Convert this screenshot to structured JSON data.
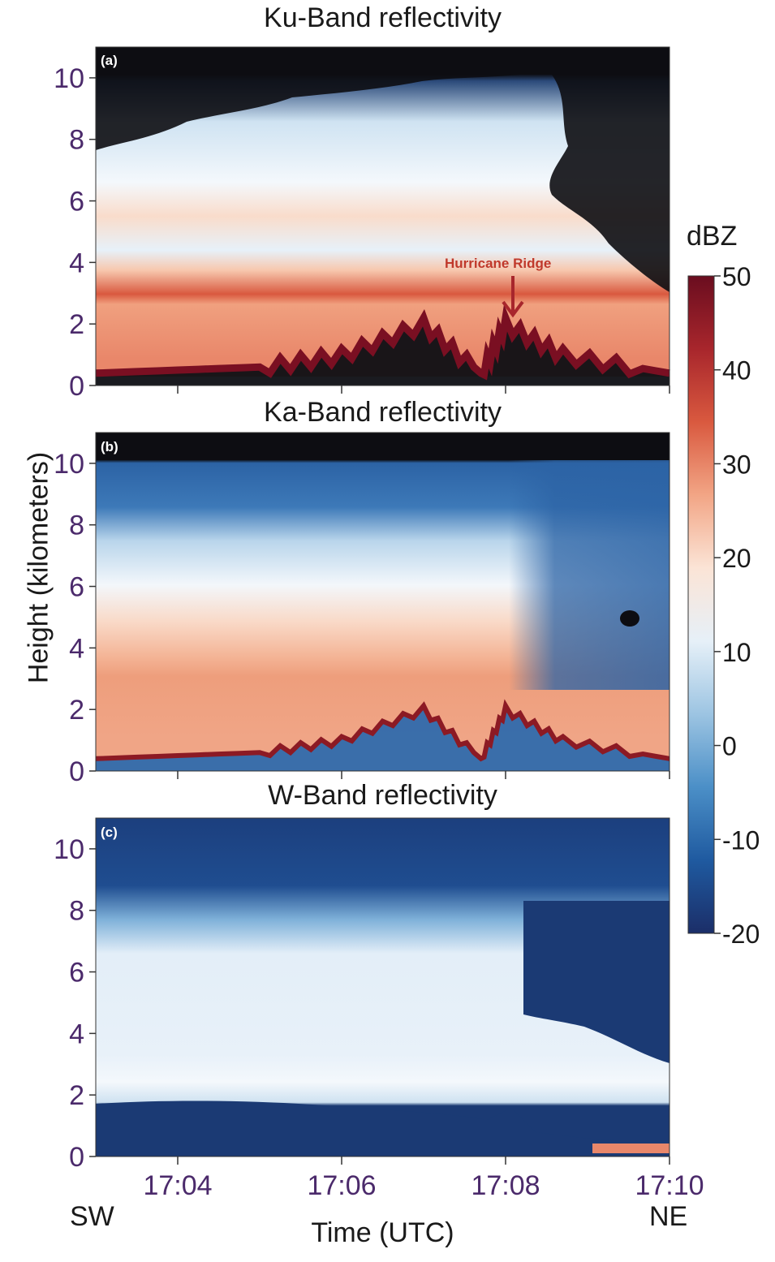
{
  "chart_data": [
    {
      "type": "heatmap",
      "panel": "(a)",
      "title": "Ku-Band reflectivity",
      "annotation": "Hurricane Ridge",
      "xlim": [
        "17:03",
        "17:10"
      ],
      "ylim": [
        0,
        11
      ],
      "yticks": [
        0,
        2,
        4,
        6,
        8,
        10
      ],
      "xticks": [
        "17:04",
        "17:06",
        "17:08",
        "17:10"
      ],
      "profile": [
        {
          "height_km": 10.2,
          "dBZ": -30
        },
        {
          "height_km": 9.0,
          "dBZ": 3
        },
        {
          "height_km": 7.0,
          "dBZ": 12
        },
        {
          "height_km": 5.5,
          "dBZ": 20
        },
        {
          "height_km": 3.0,
          "dBZ": 33
        },
        {
          "height_km": 2.0,
          "dBZ": 30
        },
        {
          "height_km": 0.4,
          "dBZ": 48
        }
      ],
      "surface_height_km": [
        {
          "time": "17:03",
          "height": 0.4
        },
        {
          "time": "17:05",
          "height": 0.6
        },
        {
          "time": "17:06",
          "height": 1.0
        },
        {
          "time": "17:07",
          "height": 2.0
        },
        {
          "time": "17:07.7",
          "height": 0.4
        },
        {
          "time": "17:08",
          "height": 2.0
        },
        {
          "time": "17:08.7",
          "height": 1.0
        },
        {
          "time": "17:10",
          "height": 0.4
        }
      ]
    },
    {
      "type": "heatmap",
      "panel": "(b)",
      "title": "Ka-Band reflectivity",
      "xlim": [
        "17:03",
        "17:10"
      ],
      "ylim": [
        0,
        11
      ],
      "yticks": [
        0,
        2,
        4,
        6,
        8,
        10
      ],
      "xticks": [
        "17:04",
        "17:06",
        "17:08",
        "17:10"
      ],
      "profile": [
        {
          "height_km": 10.2,
          "dBZ": -15
        },
        {
          "height_km": 8.0,
          "dBZ": -5
        },
        {
          "height_km": 6.0,
          "dBZ": 12
        },
        {
          "height_km": 3.0,
          "dBZ": 28
        },
        {
          "height_km": 1.5,
          "dBZ": 27
        },
        {
          "height_km": 0.4,
          "dBZ": 45
        }
      ]
    },
    {
      "type": "heatmap",
      "panel": "(c)",
      "title": "W-Band reflectivity",
      "xlim": [
        "17:03",
        "17:10"
      ],
      "ylim": [
        0,
        11
      ],
      "yticks": [
        0,
        2,
        4,
        6,
        8,
        10
      ],
      "xticks": [
        "17:04",
        "17:06",
        "17:08",
        "17:10"
      ],
      "profile": [
        {
          "height_km": 10.0,
          "dBZ": -17
        },
        {
          "height_km": 8.0,
          "dBZ": 5
        },
        {
          "height_km": 5.0,
          "dBZ": 10
        },
        {
          "height_km": 2.5,
          "dBZ": 14
        },
        {
          "height_km": 1.0,
          "dBZ": -20
        }
      ]
    }
  ],
  "figure": {
    "ylabel": "Height (kilometers)",
    "xlabel": "Time (UTC)",
    "left_direction": "SW",
    "right_direction": "NE"
  },
  "colorbar": {
    "label": "dBZ",
    "range": [
      -20,
      50
    ],
    "ticks": [
      "50",
      "40",
      "30",
      "20",
      "10",
      "0",
      "-10",
      "-20"
    ],
    "colors": [
      "#1b2e68",
      "#1f5aa0",
      "#4b8fc7",
      "#9cc4e2",
      "#e6f0f8",
      "#fbe4d6",
      "#f2a585",
      "#d9593f",
      "#a8262c",
      "#6a0d1f"
    ]
  },
  "colors": {
    "tick_label": "#4b2a6b",
    "text": "#1a1a1a",
    "annotation": "#c0392b"
  }
}
